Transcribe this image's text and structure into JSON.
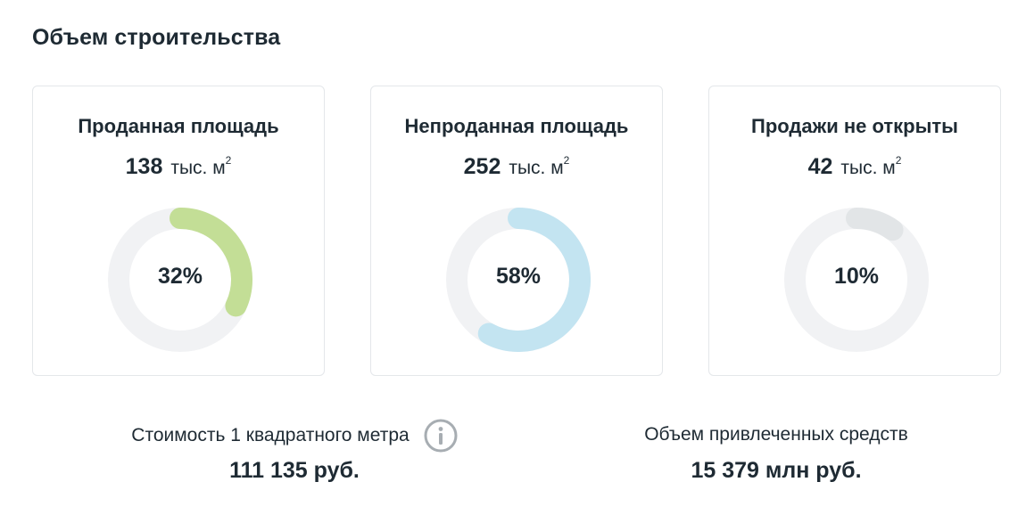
{
  "section": {
    "title": "Объем строительства"
  },
  "cards": [
    {
      "title": "Проданная площадь",
      "value": "138",
      "unit": "тыс. м",
      "unit_sup": "2",
      "percent_label": "32%",
      "fraction": 0.32,
      "color": "#c3de96"
    },
    {
      "title": "Непроданная площадь",
      "value": "252",
      "unit": "тыс. м",
      "unit_sup": "2",
      "percent_label": "58%",
      "fraction": 0.58,
      "color": "#c3e4f1"
    },
    {
      "title": "Продажи не открыты",
      "value": "42",
      "unit": "тыс. м",
      "unit_sup": "2",
      "percent_label": "10%",
      "fraction": 0.1,
      "color": "#e2e5e7"
    }
  ],
  "donut_track_color": "#f1f2f4",
  "price": {
    "label": "Стоимость 1 квадратного метра",
    "value": "111 135 руб.",
    "info_icon": "info-circle-icon"
  },
  "funds": {
    "label": "Объем привлеченных средств",
    "value": "15 379 млн руб."
  }
}
